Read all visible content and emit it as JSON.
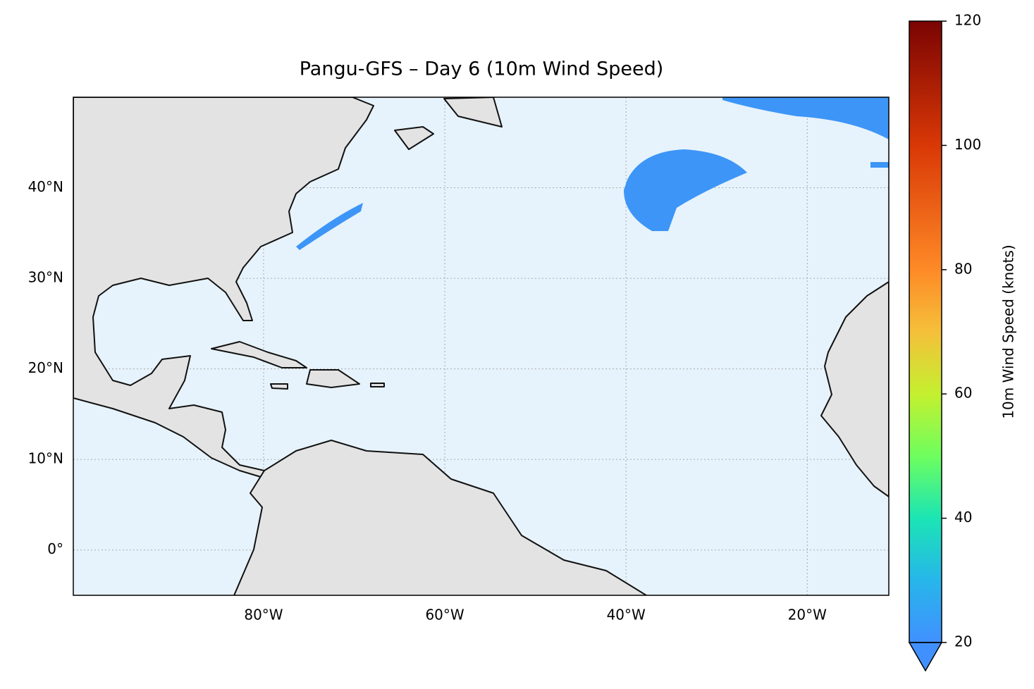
{
  "map": {
    "type": "map",
    "title": "Pangu-GFS – Day 6 (10m Wind Speed)",
    "xlim": [
      -101,
      -11
    ],
    "ylim": [
      -5,
      50
    ],
    "xticks": [
      {
        "value": -80,
        "label": "80°W"
      },
      {
        "value": -60,
        "label": "60°W"
      },
      {
        "value": -40,
        "label": "40°W"
      },
      {
        "value": -20,
        "label": "20°W"
      }
    ],
    "yticks": [
      {
        "value": 0,
        "label": "0°"
      },
      {
        "value": 10,
        "label": "10°N"
      },
      {
        "value": 20,
        "label": "20°N"
      },
      {
        "value": 30,
        "label": "30°N"
      },
      {
        "value": 40,
        "label": "40°N"
      }
    ],
    "grid": true
  },
  "colorbar": {
    "label": "10m Wind Speed (knots)",
    "lim": [
      20,
      120
    ],
    "ticks": [
      20,
      40,
      60,
      80,
      100,
      120
    ],
    "colormap": "turbo",
    "extend": "min"
  }
}
